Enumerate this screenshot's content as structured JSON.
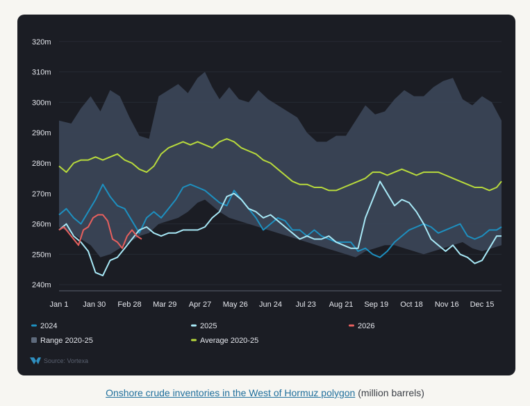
{
  "chart_data": {
    "type": "line",
    "title": "",
    "ylabel": "",
    "xlabel": "",
    "ylim": [
      238,
      322
    ],
    "xlim": [
      0,
      364
    ],
    "yticks": [
      {
        "value": 240,
        "label": "240m"
      },
      {
        "value": 250,
        "label": "250m"
      },
      {
        "value": 260,
        "label": "260m"
      },
      {
        "value": 270,
        "label": "270m"
      },
      {
        "value": 280,
        "label": "280m"
      },
      {
        "value": 290,
        "label": "290m"
      },
      {
        "value": 300,
        "label": "300m"
      },
      {
        "value": 310,
        "label": "310m"
      },
      {
        "value": 320,
        "label": "320m"
      }
    ],
    "xticks": [
      {
        "value": 0,
        "label": "Jan 1"
      },
      {
        "value": 29,
        "label": "Jan 30"
      },
      {
        "value": 58,
        "label": "Feb 28"
      },
      {
        "value": 87,
        "label": "Mar 29"
      },
      {
        "value": 116,
        "label": "Apr 27"
      },
      {
        "value": 145,
        "label": "May 26"
      },
      {
        "value": 174,
        "label": "Jun 24"
      },
      {
        "value": 203,
        "label": "Jul 23"
      },
      {
        "value": 232,
        "label": "Aug 21"
      },
      {
        "value": 261,
        "label": "Sep 19"
      },
      {
        "value": 290,
        "label": "Oct 18"
      },
      {
        "value": 319,
        "label": "Nov 16"
      },
      {
        "value": 348,
        "label": "Dec 15"
      }
    ],
    "range": {
      "name": "Range 2020-25",
      "color": "#3a4556",
      "x": [
        0,
        10,
        18,
        26,
        34,
        42,
        50,
        58,
        66,
        74,
        82,
        90,
        98,
        106,
        114,
        120,
        126,
        132,
        140,
        148,
        156,
        164,
        172,
        180,
        188,
        196,
        204,
        212,
        220,
        228,
        236,
        244,
        252,
        260,
        268,
        276,
        284,
        292,
        300,
        308,
        316,
        324,
        332,
        340,
        348,
        356,
        364
      ],
      "upper": [
        294,
        293,
        298,
        302,
        297,
        304,
        302,
        295,
        289,
        288,
        302,
        304,
        306,
        303,
        308,
        310,
        305,
        301,
        305,
        301,
        300,
        304,
        301,
        299,
        297,
        295,
        290,
        287,
        287,
        289,
        289,
        294,
        299,
        296,
        297,
        301,
        304,
        302,
        302,
        305,
        307,
        308,
        301,
        299,
        302,
        300,
        294
      ],
      "lower": [
        259,
        257,
        255,
        253,
        249,
        250,
        252,
        254,
        256,
        257,
        260,
        261,
        262,
        264,
        267,
        268,
        266,
        264,
        262,
        261,
        260,
        259,
        258,
        257,
        256,
        255,
        254,
        253,
        252,
        251,
        250,
        249,
        251,
        252,
        253,
        253,
        252,
        251,
        250,
        251,
        252,
        253,
        254,
        252,
        251,
        252,
        253
      ]
    },
    "series": [
      {
        "name": "2024",
        "color": "#1d90c0",
        "x": [
          0,
          6,
          12,
          18,
          24,
          30,
          36,
          42,
          48,
          54,
          60,
          66,
          72,
          78,
          84,
          90,
          96,
          102,
          108,
          114,
          120,
          126,
          132,
          138,
          144,
          150,
          156,
          162,
          168,
          174,
          180,
          186,
          192,
          198,
          204,
          210,
          216,
          222,
          228,
          234,
          240,
          246,
          252,
          258,
          264,
          270,
          276,
          282,
          288,
          294,
          300,
          306,
          312,
          318,
          324,
          330,
          336,
          342,
          348,
          354,
          360,
          364
        ],
        "values": [
          263,
          265,
          262,
          260,
          264,
          268,
          273,
          269,
          266,
          265,
          261,
          257,
          262,
          264,
          262,
          265,
          268,
          272,
          273,
          272,
          271,
          269,
          267,
          266,
          271,
          268,
          265,
          262,
          258,
          260,
          262,
          261,
          258,
          258,
          256,
          258,
          256,
          255,
          254,
          254,
          254,
          251,
          252,
          250,
          249,
          251,
          254,
          256,
          258,
          259,
          260,
          259,
          257,
          258,
          259,
          260,
          256,
          255,
          256,
          258,
          258,
          259
        ]
      },
      {
        "name": "2025",
        "color": "#a8e9f7",
        "x": [
          0,
          6,
          12,
          18,
          24,
          30,
          36,
          42,
          48,
          54,
          60,
          66,
          72,
          78,
          84,
          90,
          96,
          102,
          108,
          114,
          120,
          126,
          132,
          138,
          144,
          150,
          156,
          162,
          168,
          174,
          180,
          186,
          192,
          198,
          204,
          210,
          216,
          222,
          228,
          234,
          240,
          246,
          252,
          258,
          264,
          270,
          276,
          282,
          288,
          294,
          300,
          306,
          312,
          318,
          324,
          330,
          336,
          342,
          348,
          354,
          360,
          364
        ],
        "values": [
          258,
          260,
          256,
          254,
          251,
          244,
          243,
          248,
          249,
          252,
          255,
          258,
          259,
          257,
          256,
          257,
          257,
          258,
          258,
          258,
          259,
          262,
          264,
          269,
          270,
          268,
          265,
          264,
          262,
          263,
          261,
          259,
          257,
          255,
          256,
          255,
          255,
          256,
          254,
          253,
          252,
          252,
          262,
          268,
          274,
          270,
          266,
          268,
          267,
          264,
          260,
          255,
          253,
          251,
          253,
          250,
          249,
          247,
          248,
          252,
          256,
          256
        ]
      },
      {
        "name": "2026",
        "color": "#e8605e",
        "x": [
          0,
          4,
          8,
          12,
          16,
          20,
          24,
          28,
          32,
          36,
          40,
          44,
          48,
          52,
          56,
          60,
          64,
          68
        ],
        "values": [
          258,
          259,
          257,
          255,
          253,
          258,
          259,
          262,
          263,
          263,
          261,
          255,
          254,
          252,
          256,
          258,
          256,
          255
        ]
      },
      {
        "name": "Average 2020-25",
        "color": "#b9db3c",
        "x": [
          0,
          6,
          12,
          18,
          24,
          30,
          36,
          42,
          48,
          54,
          60,
          66,
          72,
          78,
          84,
          90,
          96,
          102,
          108,
          114,
          120,
          126,
          132,
          138,
          144,
          150,
          156,
          162,
          168,
          174,
          180,
          186,
          192,
          198,
          204,
          210,
          216,
          222,
          228,
          234,
          240,
          246,
          252,
          258,
          264,
          270,
          276,
          282,
          288,
          294,
          300,
          306,
          312,
          318,
          324,
          330,
          336,
          342,
          348,
          354,
          360,
          364
        ],
        "values": [
          279,
          277,
          280,
          281,
          281,
          282,
          281,
          282,
          283,
          281,
          280,
          278,
          277,
          279,
          283,
          285,
          286,
          287,
          286,
          287,
          286,
          285,
          287,
          288,
          287,
          285,
          284,
          283,
          281,
          280,
          278,
          276,
          274,
          273,
          273,
          272,
          272,
          271,
          271,
          272,
          273,
          274,
          275,
          277,
          277,
          276,
          277,
          278,
          277,
          276,
          277,
          277,
          277,
          276,
          275,
          274,
          273,
          272,
          272,
          271,
          272,
          274
        ]
      }
    ],
    "legend": {
      "placement": "bottom",
      "items": [
        {
          "label": "2024",
          "kind": "line",
          "color": "#1d90c0"
        },
        {
          "label": "2025",
          "kind": "line",
          "color": "#a8e9f7"
        },
        {
          "label": "2026",
          "kind": "line",
          "color": "#e8605e"
        },
        {
          "label": "Range 2020-25",
          "kind": "box",
          "color": "#5e6a7c"
        },
        {
          "label": "Average 2020-25",
          "kind": "line",
          "color": "#b9db3c"
        }
      ]
    }
  },
  "source": "Source: Vortexa",
  "caption": {
    "link": "Onshore crude inventories in the West of Hormuz polygon",
    "rest": " (million barrels)"
  },
  "colors": {
    "panel": "#1b1d24",
    "page": "#f7f6f2",
    "link": "#1f6f9c"
  }
}
